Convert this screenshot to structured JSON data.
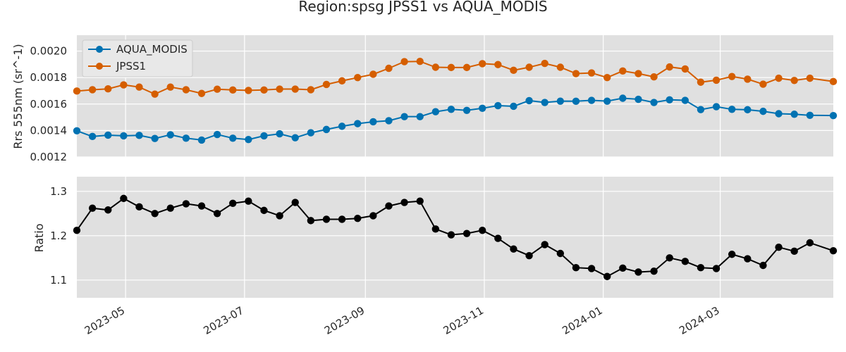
{
  "chart_data": {
    "type": "line",
    "title": "Region:spsg JPSS1 vs AQUA_MODIS",
    "colors": {
      "AQUA_MODIS": "#0072b2",
      "JPSS1": "#d55e00",
      "ratio": "#000000",
      "panel_background": "#e0e0e0",
      "grid": "#ffffff"
    },
    "x_tick_labels": [
      "2023-05",
      "2023-07",
      "2023-09",
      "2023-11",
      "2024-01",
      "2024-03"
    ],
    "x_ticks": [
      "2023-05-01",
      "2023-07-01",
      "2023-09-01",
      "2023-11-01",
      "2024-01-01",
      "2024-03-01"
    ],
    "xlim": [
      "2023-04-06",
      "2024-04-28"
    ],
    "dates": [
      "2023-04-06",
      "2023-04-14",
      "2023-04-22",
      "2023-04-30",
      "2023-05-08",
      "2023-05-16",
      "2023-05-24",
      "2023-06-01",
      "2023-06-09",
      "2023-06-17",
      "2023-06-25",
      "2023-07-03",
      "2023-07-11",
      "2023-07-19",
      "2023-07-27",
      "2023-08-04",
      "2023-08-12",
      "2023-08-20",
      "2023-08-28",
      "2023-09-05",
      "2023-09-13",
      "2023-09-21",
      "2023-09-29",
      "2023-10-07",
      "2023-10-15",
      "2023-10-23",
      "2023-10-31",
      "2023-11-08",
      "2023-11-16",
      "2023-11-24",
      "2023-12-02",
      "2023-12-10",
      "2023-12-18",
      "2023-12-26",
      "2024-01-03",
      "2024-01-11",
      "2024-01-19",
      "2024-01-27",
      "2024-02-04",
      "2024-02-12",
      "2024-02-20",
      "2024-02-28",
      "2024-03-07",
      "2024-03-15",
      "2024-03-23",
      "2024-03-31",
      "2024-04-08",
      "2024-04-16",
      "2024-04-28"
    ],
    "panels": [
      {
        "ylabel": "Rrs 555nm (sr^-1)",
        "ylim": [
          0.0012,
          0.00212
        ],
        "y_ticks": [
          0.0012,
          0.0014,
          0.0016,
          0.0018,
          0.002
        ],
        "y_tick_labels": [
          "0.0012",
          "0.0014",
          "0.0016",
          "0.0018",
          "0.0020"
        ],
        "legend": "top-left",
        "series": [
          {
            "name": "AQUA_MODIS",
            "color": "#0072b2",
            "values": [
              0.001398,
              0.001355,
              0.001365,
              0.00136,
              0.001363,
              0.00134,
              0.001368,
              0.001342,
              0.001328,
              0.00137,
              0.001342,
              0.001332,
              0.00136,
              0.001375,
              0.001345,
              0.001383,
              0.001408,
              0.001432,
              0.001452,
              0.001466,
              0.001474,
              0.001505,
              0.001505,
              0.001542,
              0.00156,
              0.001552,
              0.001568,
              0.001588,
              0.001583,
              0.001626,
              0.001612,
              0.001622,
              0.001621,
              0.001628,
              0.001622,
              0.001644,
              0.001636,
              0.001612,
              0.001632,
              0.001628,
              0.001558,
              0.00158,
              0.00156,
              0.001557,
              0.001545,
              0.001527,
              0.001523,
              0.001515,
              0.001513
            ]
          },
          {
            "name": "JPSS1",
            "color": "#d55e00",
            "values": [
              0.001698,
              0.001708,
              0.001715,
              0.001745,
              0.001728,
              0.001675,
              0.001728,
              0.001708,
              0.00168,
              0.001712,
              0.001706,
              0.001703,
              0.001706,
              0.001713,
              0.001713,
              0.001708,
              0.001748,
              0.001775,
              0.0018,
              0.001825,
              0.00187,
              0.00192,
              0.001922,
              0.001878,
              0.001876,
              0.001876,
              0.001905,
              0.001898,
              0.001855,
              0.001878,
              0.001907,
              0.001878,
              0.00183,
              0.001835,
              0.0018,
              0.00185,
              0.00183,
              0.001805,
              0.00188,
              0.001865,
              0.001765,
              0.00178,
              0.001808,
              0.001788,
              0.00175,
              0.001795,
              0.001778,
              0.001795,
              0.00177
            ]
          }
        ]
      },
      {
        "ylabel": "Ratio",
        "ylim": [
          1.06,
          1.333
        ],
        "y_ticks": [
          1.1,
          1.2,
          1.3
        ],
        "y_tick_labels": [
          "1.1",
          "1.2",
          "1.3"
        ],
        "series": [
          {
            "name": "",
            "color": "#000000",
            "values": [
              1.212,
              1.262,
              1.258,
              1.284,
              1.265,
              1.25,
              1.262,
              1.272,
              1.267,
              1.25,
              1.273,
              1.278,
              1.257,
              1.245,
              1.275,
              1.234,
              1.237,
              1.237,
              1.239,
              1.245,
              1.267,
              1.275,
              1.278,
              1.215,
              1.202,
              1.205,
              1.212,
              1.194,
              1.17,
              1.155,
              1.18,
              1.16,
              1.128,
              1.126,
              1.108,
              1.127,
              1.118,
              1.12,
              1.15,
              1.142,
              1.128,
              1.126,
              1.158,
              1.148,
              1.133,
              1.174,
              1.165,
              1.184,
              1.166
            ]
          }
        ]
      }
    ]
  }
}
